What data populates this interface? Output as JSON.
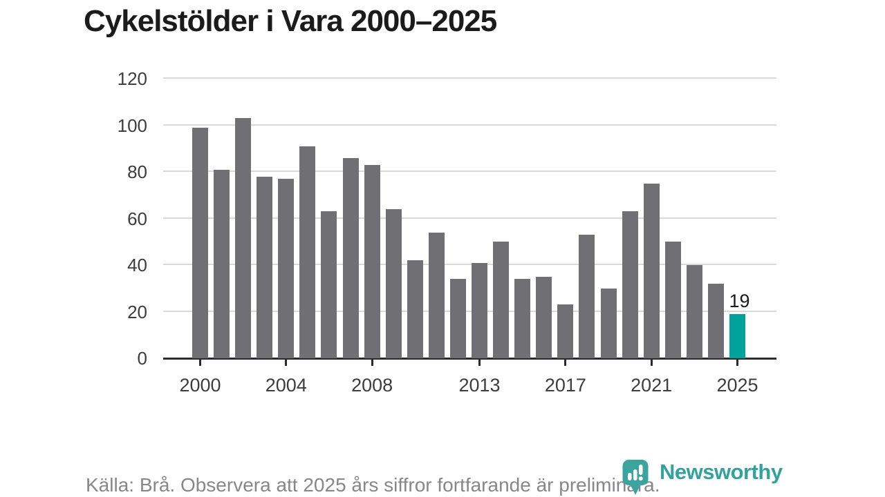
{
  "title": "Cykelstölder i Vara 2000–2025",
  "chart_data": {
    "type": "bar",
    "title": "Cykelstölder i Vara 2000–2025",
    "x": [
      2000,
      2001,
      2002,
      2003,
      2004,
      2005,
      2006,
      2007,
      2008,
      2009,
      2010,
      2011,
      2012,
      2013,
      2014,
      2015,
      2016,
      2017,
      2018,
      2019,
      2020,
      2021,
      2022,
      2023,
      2024,
      2025
    ],
    "values": [
      99,
      81,
      103,
      78,
      77,
      91,
      63,
      86,
      83,
      64,
      42,
      54,
      34,
      41,
      50,
      34,
      35,
      23,
      53,
      30,
      63,
      75,
      50,
      40,
      32,
      19
    ],
    "x_tick_labels": [
      "2000",
      "2004",
      "2008",
      "2013",
      "2017",
      "2021",
      "2025"
    ],
    "y_ticks": [
      0,
      20,
      40,
      60,
      80,
      100,
      120
    ],
    "ylim": [
      0,
      120
    ],
    "grid": "horizontal",
    "legend": "none",
    "bar_color": "#706f74",
    "highlight": {
      "x": 2025,
      "color": "#00a39b",
      "label": "19"
    }
  },
  "footer": {
    "source_note": "Källa: Brå. Observera att 2025 års siffror fortfarande är preliminära."
  },
  "logo": {
    "name": "Newsworthy",
    "color": "#33a29d"
  }
}
